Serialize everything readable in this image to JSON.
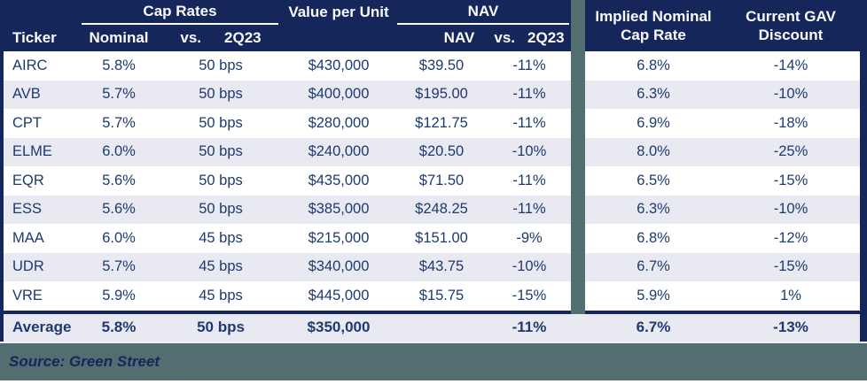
{
  "header": {
    "ticker": "Ticker",
    "groups": {
      "cap_rates": "Cap Rates",
      "value_per_unit": "Value per Unit",
      "nav": "NAV"
    },
    "sub": {
      "nominal": "Nominal",
      "cap_vs": "vs.",
      "cap_q": "2Q23",
      "nav_label": "NAV",
      "nav_vs": "vs.",
      "nav_q": "2Q23"
    },
    "implied_line1": "Implied Nominal",
    "implied_line2": "Cap Rate",
    "gav_line1": "Current GAV",
    "gav_line2": "Discount"
  },
  "table": {
    "rows": [
      {
        "ticker": "AIRC",
        "nominal": "5.8%",
        "cap_vs": "50 bps",
        "value": "$430,000",
        "nav": "$39.50",
        "nav_vs": "-11%",
        "implied": "6.8%",
        "gav": "-14%"
      },
      {
        "ticker": "AVB",
        "nominal": "5.7%",
        "cap_vs": "50 bps",
        "value": "$400,000",
        "nav": "$195.00",
        "nav_vs": "-11%",
        "implied": "6.3%",
        "gav": "-10%"
      },
      {
        "ticker": "CPT",
        "nominal": "5.7%",
        "cap_vs": "50 bps",
        "value": "$280,000",
        "nav": "$121.75",
        "nav_vs": "-11%",
        "implied": "6.9%",
        "gav": "-18%"
      },
      {
        "ticker": "ELME",
        "nominal": "6.0%",
        "cap_vs": "50 bps",
        "value": "$240,000",
        "nav": "$20.50",
        "nav_vs": "-10%",
        "implied": "8.0%",
        "gav": "-25%"
      },
      {
        "ticker": "EQR",
        "nominal": "5.6%",
        "cap_vs": "50 bps",
        "value": "$435,000",
        "nav": "$71.50",
        "nav_vs": "-11%",
        "implied": "6.5%",
        "gav": "-15%"
      },
      {
        "ticker": "ESS",
        "nominal": "5.6%",
        "cap_vs": "50 bps",
        "value": "$385,000",
        "nav": "$248.25",
        "nav_vs": "-11%",
        "implied": "6.3%",
        "gav": "-10%"
      },
      {
        "ticker": "MAA",
        "nominal": "6.0%",
        "cap_vs": "45 bps",
        "value": "$215,000",
        "nav": "$151.00",
        "nav_vs": "-9%",
        "implied": "6.8%",
        "gav": "-12%"
      },
      {
        "ticker": "UDR",
        "nominal": "5.7%",
        "cap_vs": "45 bps",
        "value": "$340,000",
        "nav": "$43.75",
        "nav_vs": "-10%",
        "implied": "6.7%",
        "gav": "-15%"
      },
      {
        "ticker": "VRE",
        "nominal": "5.9%",
        "cap_vs": "45 bps",
        "value": "$445,000",
        "nav": "$15.75",
        "nav_vs": "-15%",
        "implied": "5.9%",
        "gav": "1%"
      }
    ],
    "average": {
      "ticker": "Average",
      "nominal": "5.8%",
      "cap_vs": "50 bps",
      "value": "$350,000",
      "nav": "",
      "nav_vs": "-11%",
      "implied": "6.7%",
      "gav": "-13%"
    }
  },
  "footer": {
    "source": "Source: Green Street"
  },
  "colors": {
    "header_navy": "#15265b",
    "text_navy": "#1e3a6e",
    "stripe": "#e8e9f1",
    "divider_slate": "#536e70",
    "header_underline": "#ffffff"
  },
  "chart_data": {
    "type": "table",
    "columns": [
      "Ticker",
      "Cap Rates Nominal",
      "Cap Rates vs. 2Q23",
      "Value per Unit",
      "NAV",
      "NAV vs. 2Q23",
      "Implied Nominal Cap Rate",
      "Current GAV Discount"
    ],
    "rows": [
      [
        "AIRC",
        "5.8%",
        "50 bps",
        "$430,000",
        "$39.50",
        "-11%",
        "6.8%",
        "-14%"
      ],
      [
        "AVB",
        "5.7%",
        "50 bps",
        "$400,000",
        "$195.00",
        "-11%",
        "6.3%",
        "-10%"
      ],
      [
        "CPT",
        "5.7%",
        "50 bps",
        "$280,000",
        "$121.75",
        "-11%",
        "6.9%",
        "-18%"
      ],
      [
        "ELME",
        "6.0%",
        "50 bps",
        "$240,000",
        "$20.50",
        "-10%",
        "8.0%",
        "-25%"
      ],
      [
        "EQR",
        "5.6%",
        "50 bps",
        "$435,000",
        "$71.50",
        "-11%",
        "6.5%",
        "-15%"
      ],
      [
        "ESS",
        "5.6%",
        "50 bps",
        "$385,000",
        "$248.25",
        "-11%",
        "6.3%",
        "-10%"
      ],
      [
        "MAA",
        "6.0%",
        "45 bps",
        "$215,000",
        "$151.00",
        "-9%",
        "6.8%",
        "-12%"
      ],
      [
        "UDR",
        "5.7%",
        "45 bps",
        "$340,000",
        "$43.75",
        "-10%",
        "6.7%",
        "-15%"
      ],
      [
        "VRE",
        "5.9%",
        "45 bps",
        "$445,000",
        "$15.75",
        "-15%",
        "5.9%",
        "1%"
      ]
    ],
    "average_row": [
      "Average",
      "5.8%",
      "50 bps",
      "$350,000",
      "",
      "-11%",
      "6.7%",
      "-13%"
    ],
    "source": "Source: Green Street"
  }
}
